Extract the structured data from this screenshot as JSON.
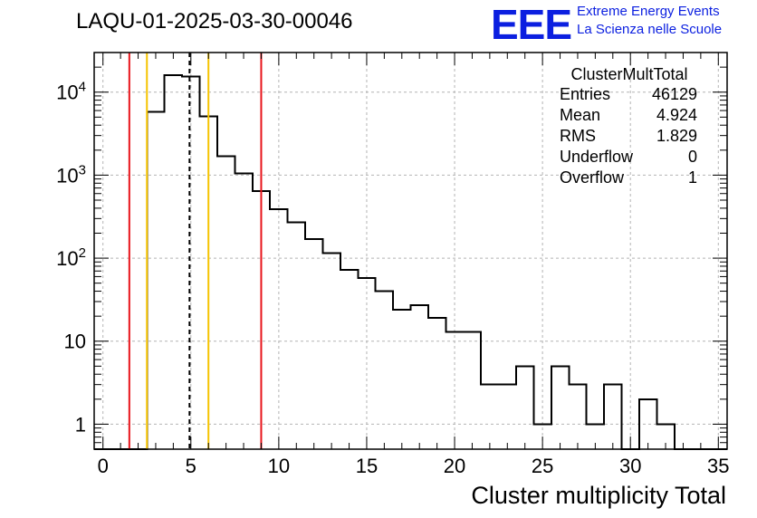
{
  "header": {
    "title": "LAQU-01-2025-03-30-00046"
  },
  "logo": {
    "mark": "EEE",
    "line1": "Extreme Energy Events",
    "line2": "La Scienza nelle Scuole"
  },
  "stats": {
    "title": "ClusterMultTotal",
    "rows": [
      {
        "key": "Entries",
        "value": "46129"
      },
      {
        "key": "Mean",
        "value": "4.924"
      },
      {
        "key": "RMS",
        "value": "1.829"
      },
      {
        "key": "Underflow",
        "value": "0"
      },
      {
        "key": "Overflow",
        "value": "1"
      }
    ]
  },
  "chart_data": {
    "type": "histogram",
    "title": "LAQU-01-2025-03-30-00046",
    "xlabel": "Cluster multiplicity Total",
    "ylabel": "",
    "yscale": "log",
    "xlim": [
      -0.5,
      35.5
    ],
    "ylim": [
      0.5,
      30000
    ],
    "grid": true,
    "bin_edges_start": -0.5,
    "bin_width": 1,
    "counts": [
      0,
      0,
      0,
      5800,
      16000,
      15500,
      5100,
      1700,
      1050,
      640,
      390,
      270,
      170,
      115,
      72,
      58,
      40,
      24,
      27,
      19,
      13,
      13,
      3,
      3,
      5,
      1,
      5,
      3,
      1,
      3,
      0,
      2,
      1,
      0,
      0,
      0
    ],
    "x_ticks": [
      "0",
      "5",
      "10",
      "15",
      "20",
      "25",
      "30",
      "35"
    ],
    "y_ticks": [
      {
        "value": 1,
        "label": "1"
      },
      {
        "value": 10,
        "label": "10"
      },
      {
        "value": 100,
        "label": "10",
        "exp": "2"
      },
      {
        "value": 1000,
        "label": "10",
        "exp": "3"
      },
      {
        "value": 10000,
        "label": "10",
        "exp": "4"
      }
    ],
    "vlines": [
      {
        "x": 1.5,
        "color": "#e8141b",
        "style": "solid"
      },
      {
        "x": 2.5,
        "color": "#f5c400",
        "style": "solid"
      },
      {
        "x": 4.924,
        "color": "#000000",
        "style": "dashed"
      },
      {
        "x": 6.0,
        "color": "#f5c400",
        "style": "solid"
      },
      {
        "x": 9.0,
        "color": "#e8141b",
        "style": "solid"
      }
    ]
  }
}
